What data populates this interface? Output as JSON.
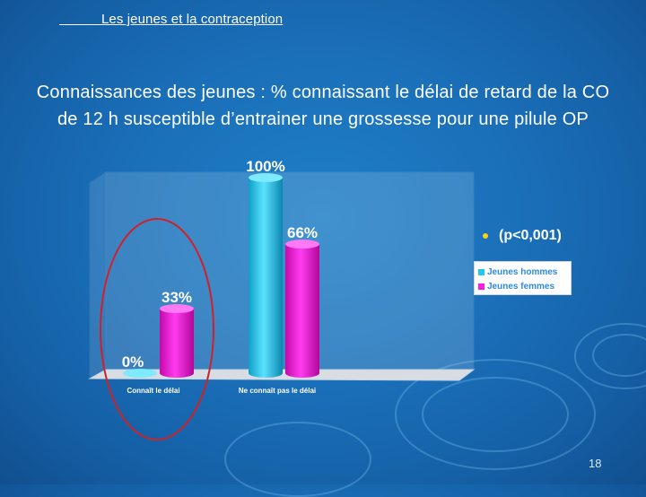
{
  "header": {
    "title": "           Les jeunes et la contraception"
  },
  "slide": {
    "title_line1": "Connaissances des jeunes : % connaissant le délai de retard de la CO",
    "title_line2": "de 12 h susceptible d’entrainer une grossesse pour une pilule OP",
    "page_number": "18"
  },
  "colors": {
    "background": "#1a6fb8",
    "series_hommes": "#1ec8ee",
    "series_femmes": "#ff18e6",
    "highlight_ellipse": "#d0202a",
    "bullet": "#ffd21a"
  },
  "chart_data": {
    "type": "bar",
    "style": "3d-cylinder",
    "categories": [
      "Connaît le délai",
      "Ne connaît pas le délai"
    ],
    "series": [
      {
        "name": "Jeunes hommes",
        "values": [
          0,
          100
        ],
        "labels": [
          "0%",
          "100%"
        ]
      },
      {
        "name": "Jeunes femmes",
        "values": [
          33,
          66
        ],
        "labels": [
          "33%",
          "66%"
        ]
      }
    ],
    "ylim": [
      0,
      100
    ],
    "legend_position": "right",
    "annotation": "(p<0,001)",
    "highlight": "ellipse around first category"
  }
}
